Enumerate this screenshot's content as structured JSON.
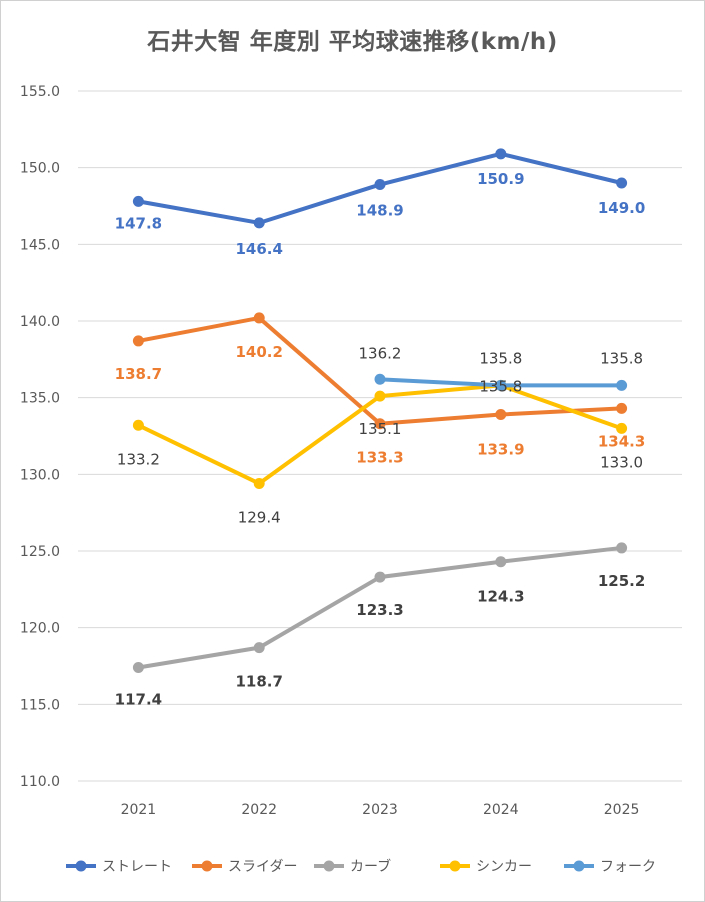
{
  "chart_data": {
    "type": "line",
    "title": "石井大智 年度別 平均球速推移(km/h)",
    "categories": [
      "2021",
      "2022",
      "2023",
      "2024",
      "2025"
    ],
    "ylim": [
      110,
      155
    ],
    "yticks": [
      "110.0",
      "115.0",
      "120.0",
      "125.0",
      "130.0",
      "135.0",
      "140.0",
      "145.0",
      "150.0",
      "155.0"
    ],
    "grid": true,
    "legend_position": "bottom",
    "series": [
      {
        "name": "ストレート",
        "color": "#4472C4",
        "values": [
          147.8,
          146.4,
          148.9,
          150.9,
          149.0
        ],
        "labels": [
          "147.8",
          "146.4",
          "148.9",
          "150.9",
          "149.0"
        ],
        "label_color": "#4472C4"
      },
      {
        "name": "スライダー",
        "color": "#ED7D31",
        "values": [
          138.7,
          140.2,
          133.3,
          133.9,
          134.3
        ],
        "labels": [
          "138.7",
          "140.2",
          "133.3",
          "133.9",
          "134.3"
        ],
        "label_color": "#ED7D31"
      },
      {
        "name": "カーブ",
        "color": "#A5A5A5",
        "values": [
          117.4,
          118.7,
          123.3,
          124.3,
          125.2
        ],
        "labels": [
          "117.4",
          "118.7",
          "123.3",
          "124.3",
          "125.2"
        ],
        "label_color": "#404040"
      },
      {
        "name": "シンカー",
        "color": "#FFC000",
        "values": [
          133.2,
          129.4,
          135.1,
          135.8,
          133.0
        ],
        "labels": [
          "133.2",
          "129.4",
          "135.1",
          "135.8",
          "133.0"
        ],
        "label_color": "#404040"
      },
      {
        "name": "フォーク",
        "color": "#5B9BD5",
        "values": [
          null,
          null,
          136.2,
          135.8,
          135.8
        ],
        "labels": [
          null,
          null,
          "136.2",
          "135.8",
          "135.8"
        ],
        "label_color": "#404040"
      }
    ]
  }
}
